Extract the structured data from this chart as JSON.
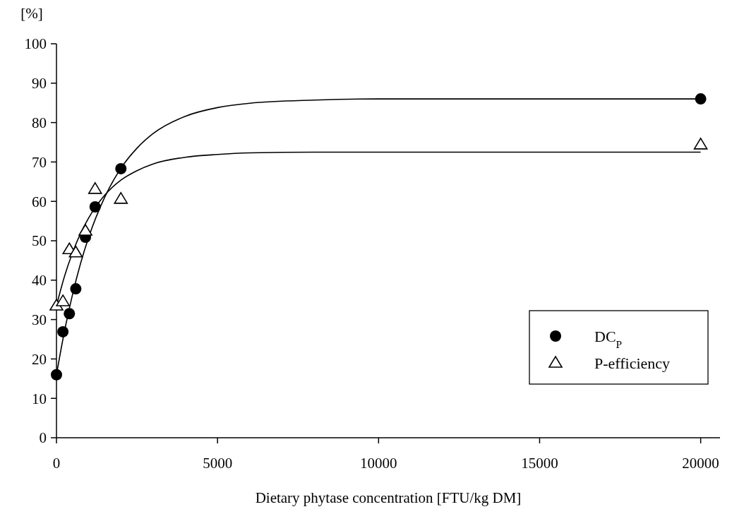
{
  "chart_data": {
    "type": "scatter",
    "xlabel": "Dietary phytase concentration [FTU/kg DM]",
    "ylabel": "[%]",
    "xlim": [
      0,
      20600
    ],
    "ylim": [
      0,
      100
    ],
    "xticks": [
      0,
      5000,
      10000,
      15000,
      20000
    ],
    "yticks": [
      0,
      10,
      20,
      30,
      40,
      50,
      60,
      70,
      80,
      90,
      100
    ],
    "grid": false,
    "legend": "bottom right",
    "series": [
      {
        "type": "line",
        "color": "#000000",
        "marker": "none",
        "line_style": "solid",
        "x": [
          0,
          250,
          500,
          750,
          1000,
          1500,
          2000,
          2500,
          3000,
          4000,
          5000,
          6000,
          8000,
          10000,
          20000
        ],
        "values": [
          16,
          27.1,
          36.4,
          44.3,
          50.9,
          61.1,
          68.4,
          73.5,
          77.2,
          81.6,
          83.8,
          84.9,
          85.7,
          86,
          86
        ]
      },
      {
        "type": "line",
        "color": "#000000",
        "marker": "none",
        "line_style": "solid",
        "x": [
          0,
          250,
          500,
          750,
          1000,
          1500,
          2000,
          2500,
          3000,
          4000,
          5000,
          6000,
          8000,
          10000,
          20000
        ],
        "values": [
          33.5,
          41,
          47,
          51.9,
          55.8,
          61.6,
          65.4,
          67.8,
          69.5,
          71.2,
          71.9,
          72.3,
          72.5,
          72.5,
          72.5
        ]
      },
      {
        "name": "DC$_{P}$",
        "color": "#000000",
        "marker": "circle",
        "x": [
          0,
          200,
          400,
          600,
          900,
          1200,
          2000,
          20000
        ],
        "values": [
          16,
          26.9,
          31.5,
          37.8,
          50.9,
          58.6,
          68.3,
          86
        ]
      },
      {
        "name": "P-efficiency",
        "color": "#000000",
        "marker": "triangle",
        "x": [
          0,
          200,
          400,
          600,
          900,
          1200,
          2000,
          20000
        ],
        "values": [
          33.5,
          34.6,
          47.8,
          47,
          52.5,
          63.1,
          60.6,
          74.4
        ]
      }
    ]
  }
}
